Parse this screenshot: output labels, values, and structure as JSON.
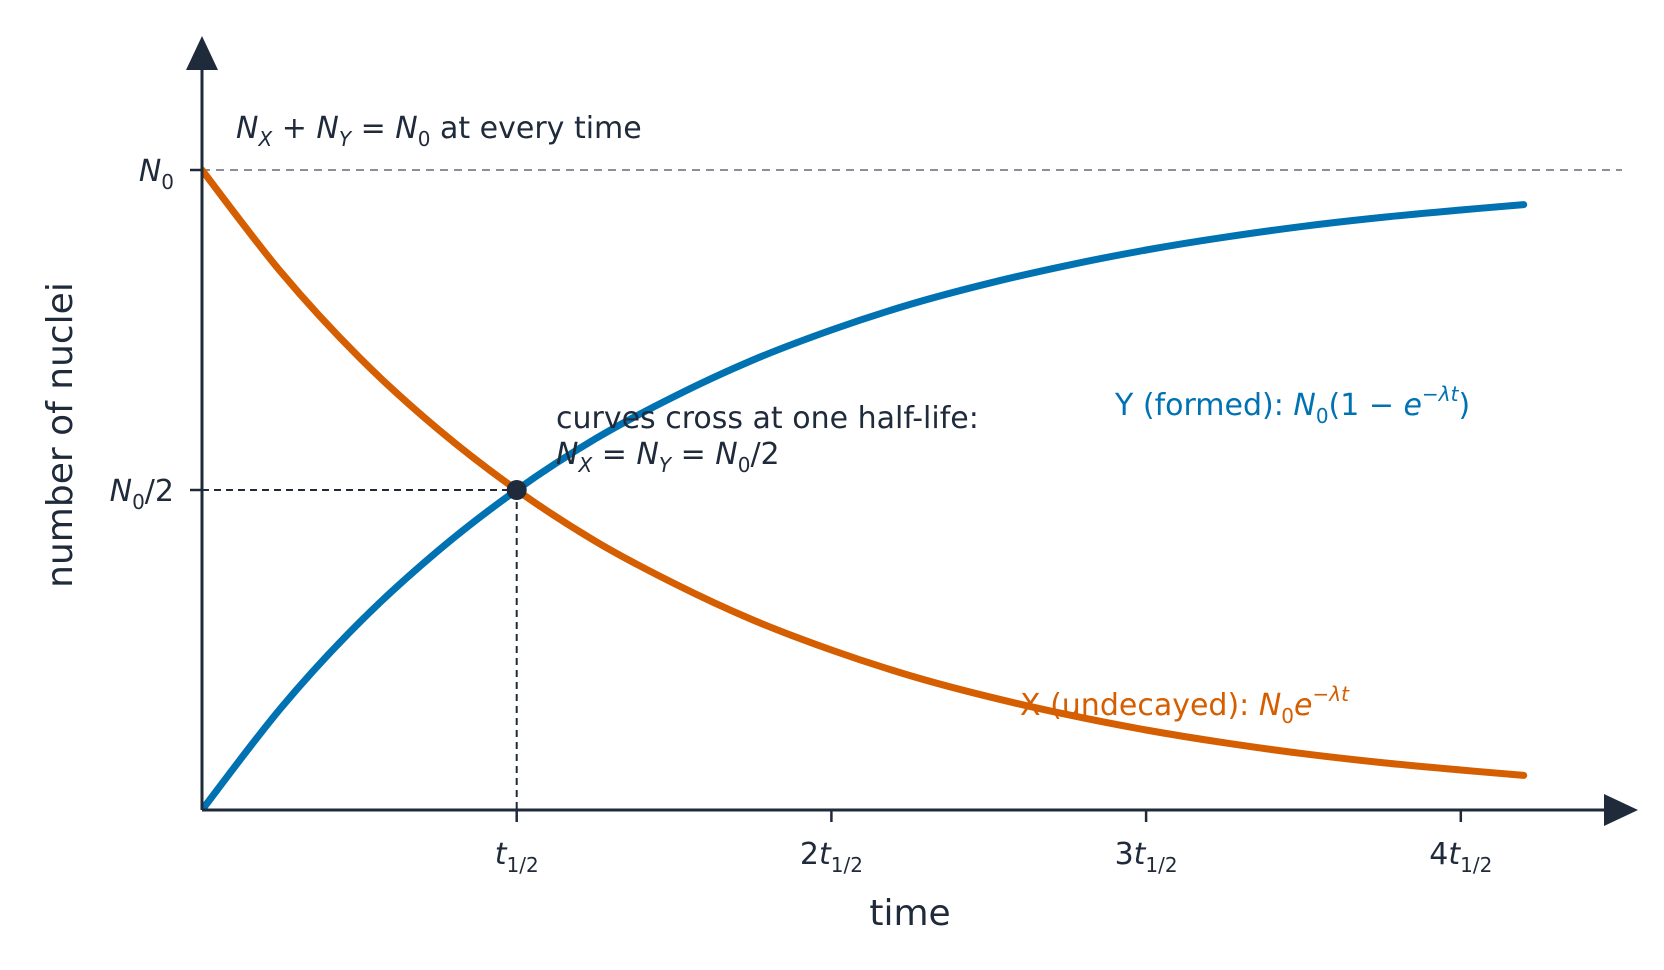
{
  "chart_data": {
    "type": "line",
    "xlabel": "time",
    "ylabel": "number of nuclei",
    "x_unit": "half-lives",
    "y_unit": "fraction of N0",
    "xlim": [
      0,
      4.5
    ],
    "ylim": [
      0,
      1.3
    ],
    "grid": false,
    "xticks": [
      {
        "value": 1,
        "coef": "",
        "sym": "t",
        "sub": "1/2"
      },
      {
        "value": 2,
        "coef": "2",
        "sym": "t",
        "sub": "1/2"
      },
      {
        "value": 3,
        "coef": "3",
        "sym": "t",
        "sub": "1/2"
      },
      {
        "value": 4,
        "coef": "4",
        "sym": "t",
        "sub": "1/2"
      }
    ],
    "yticks": [
      {
        "value": 1,
        "sym": "N",
        "sub": "0",
        "suffix": ""
      },
      {
        "value": 0.5,
        "sym": "N",
        "sub": "0",
        "suffix": "/2"
      }
    ],
    "series": [
      {
        "key": "undecayed",
        "color": "#d55e00",
        "x": [
          0,
          0.25,
          0.5,
          0.75,
          1,
          1.25,
          1.5,
          1.75,
          2,
          2.25,
          2.5,
          2.75,
          3,
          3.25,
          3.5,
          3.75,
          4,
          4.2
        ],
        "y": [
          1,
          0.841,
          0.707,
          0.595,
          0.5,
          0.42,
          0.354,
          0.297,
          0.25,
          0.21,
          0.177,
          0.149,
          0.125,
          0.105,
          0.088,
          0.074,
          0.0625,
          0.054
        ]
      },
      {
        "key": "formed",
        "color": "#0072b2",
        "x": [
          0,
          0.25,
          0.5,
          0.75,
          1,
          1.25,
          1.5,
          1.75,
          2,
          2.25,
          2.5,
          2.75,
          3,
          3.25,
          3.5,
          3.75,
          4,
          4.2
        ],
        "y": [
          0,
          0.159,
          0.293,
          0.405,
          0.5,
          0.58,
          0.646,
          0.703,
          0.75,
          0.79,
          0.823,
          0.851,
          0.875,
          0.895,
          0.912,
          0.926,
          0.9375,
          0.946
        ]
      }
    ],
    "crossing_point": {
      "x": 1,
      "y": 0.5
    },
    "reference_line": {
      "y": 1,
      "style": "dashed"
    },
    "annotations": {
      "conservation": {
        "nx_sym": "N",
        "nx_sub": "X",
        "plus": " + ",
        "ny_sym": "N",
        "ny_sub": "Y",
        "eq": " = ",
        "n0_sym": "N",
        "n0_sub": "0",
        "tail": " at every time"
      },
      "crossing": {
        "line1": "curves cross at one half-life:",
        "nx_sym": "N",
        "nx_sub": "X",
        "eq1": " = ",
        "ny_sym": "N",
        "ny_sub": "Y",
        "eq2": " = ",
        "n0_sym": "N",
        "n0_sub": "0",
        "tail": "/2"
      },
      "formed_label": {
        "prefix": "Y (formed): ",
        "n0_sym": "N",
        "n0_sub": "0",
        "open": "(1 − ",
        "e": "e",
        "exp": "−λt",
        "close": ")"
      },
      "undecayed_label": {
        "prefix": "X (undecayed): ",
        "n0_sym": "N",
        "n0_sub": "0",
        "e": "e",
        "exp": "−λt"
      }
    },
    "colors": {
      "axis": "#1f2a3a",
      "reference": "#8a8f99",
      "undecayed": "#d55e00",
      "formed": "#0072b2"
    }
  }
}
